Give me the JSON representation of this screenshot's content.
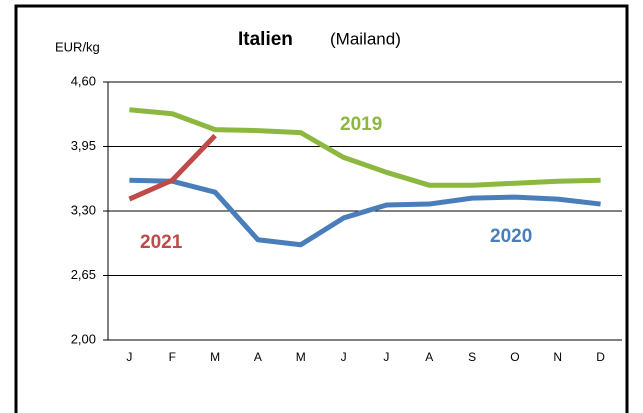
{
  "chart_data": {
    "type": "line",
    "title": "Italien",
    "subtitle": "(Mailand)",
    "y_label": "EUR/kg",
    "categories": [
      "J",
      "F",
      "M",
      "A",
      "M",
      "J",
      "J",
      "A",
      "S",
      "O",
      "N",
      "D"
    ],
    "series": [
      {
        "name": "2019",
        "color": "#8db83f",
        "values": [
          4.32,
          4.28,
          4.12,
          4.11,
          4.09,
          3.84,
          3.69,
          3.56,
          3.56,
          3.58,
          3.6,
          3.61
        ]
      },
      {
        "name": "2020",
        "color": "#4a7ebb",
        "values": [
          3.61,
          3.6,
          3.49,
          3.01,
          2.96,
          3.23,
          3.36,
          3.37,
          3.43,
          3.44,
          3.42,
          3.37
        ]
      },
      {
        "name": "2021",
        "color": "#be4b48",
        "values": [
          3.42,
          3.61,
          4.06,
          null,
          null,
          null,
          null,
          null,
          null,
          null,
          null,
          null
        ]
      }
    ],
    "ylim": [
      2.0,
      4.6
    ],
    "yticks": [
      {
        "value": 2.0,
        "label": "2,00"
      },
      {
        "value": 2.65,
        "label": "2,65"
      },
      {
        "value": 3.3,
        "label": "3,30"
      },
      {
        "value": 3.95,
        "label": "3,95"
      },
      {
        "value": 4.6,
        "label": "4,60"
      }
    ],
    "grid": true
  }
}
